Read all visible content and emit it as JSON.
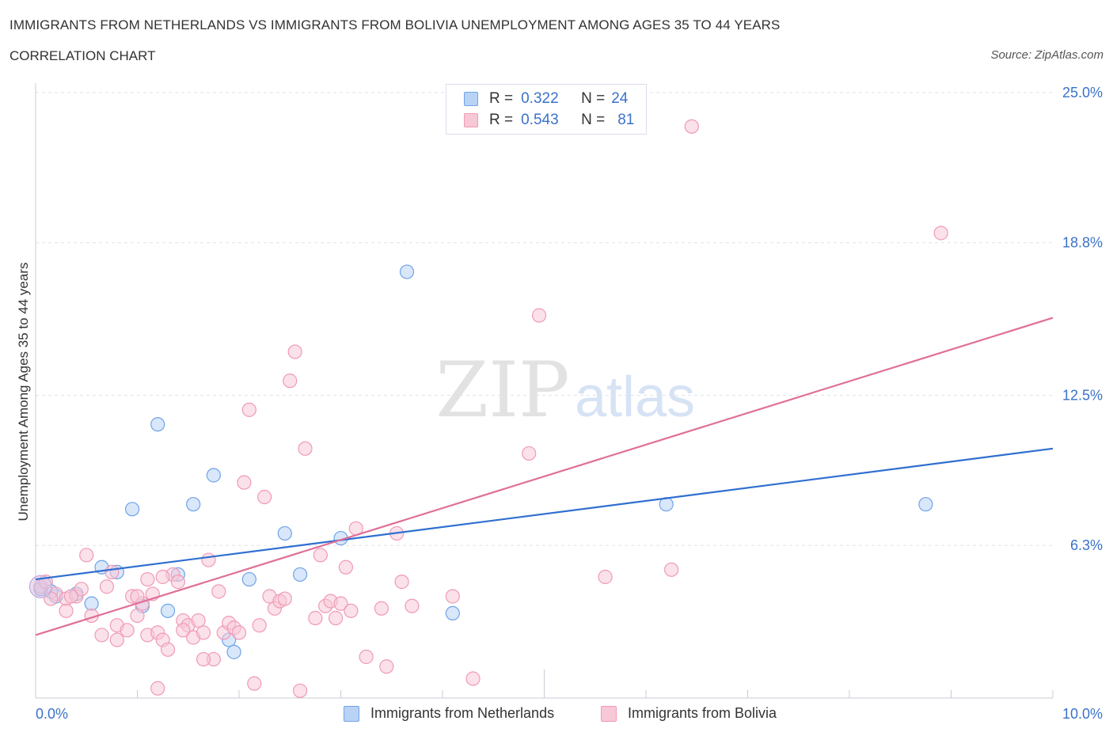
{
  "header": {
    "title": "IMMIGRANTS FROM NETHERLANDS VS IMMIGRANTS FROM BOLIVIA UNEMPLOYMENT AMONG AGES 35 TO 44 YEARS",
    "subtitle": "CORRELATION CHART",
    "source": "Source: ZipAtlas.com"
  },
  "watermark": {
    "zip": "ZIP",
    "atlas": "atlas"
  },
  "legend_top": {
    "rows": [
      {
        "r_label": "R =",
        "r_value": "0.322",
        "n_label": "N =",
        "n_value": "24"
      },
      {
        "r_label": "R =",
        "r_value": "0.543",
        "n_label": "N =",
        "n_value": "81"
      }
    ]
  },
  "chart_data": {
    "type": "scatter",
    "title": "IMMIGRANTS FROM NETHERLANDS VS IMMIGRANTS FROM BOLIVIA UNEMPLOYMENT AMONG AGES 35 TO 44 YEARS",
    "xlabel": "",
    "ylabel": "Unemployment Among Ages 35 to 44 years",
    "xlim": [
      0,
      10
    ],
    "ylim": [
      0,
      25
    ],
    "x_tick_labels": [
      {
        "value": 0,
        "label": "0.0%"
      },
      {
        "value": 10,
        "label": "10.0%"
      }
    ],
    "y_tick_labels": [
      {
        "value": 6.3,
        "label": "6.3%"
      },
      {
        "value": 12.5,
        "label": "12.5%"
      },
      {
        "value": 18.8,
        "label": "18.8%"
      },
      {
        "value": 25.0,
        "label": "25.0%"
      }
    ],
    "grid": true,
    "legend_position": "bottom",
    "series": [
      {
        "name": "Immigrants from Netherlands",
        "color": "#6fa3e8",
        "fill": "#b9d3f5",
        "line_color": "#2f6fd0",
        "trend": {
          "x0": 0,
          "y0": 4.9,
          "x1": 10,
          "y1": 10.3
        },
        "points": [
          [
            0.05,
            4.5
          ],
          [
            0.2,
            4.2
          ],
          [
            0.4,
            4.3
          ],
          [
            0.55,
            3.9
          ],
          [
            0.65,
            5.4
          ],
          [
            0.8,
            5.2
          ],
          [
            0.95,
            7.8
          ],
          [
            1.05,
            3.8
          ],
          [
            1.2,
            11.3
          ],
          [
            1.3,
            3.6
          ],
          [
            1.4,
            5.1
          ],
          [
            1.55,
            8.0
          ],
          [
            1.75,
            9.2
          ],
          [
            1.9,
            2.4
          ],
          [
            1.95,
            1.9
          ],
          [
            2.1,
            4.9
          ],
          [
            2.45,
            6.8
          ],
          [
            2.6,
            5.1
          ],
          [
            3.0,
            6.6
          ],
          [
            3.65,
            17.6
          ],
          [
            4.1,
            3.5
          ],
          [
            6.2,
            8.0
          ],
          [
            8.75,
            8.0
          ],
          [
            0.15,
            4.4
          ]
        ]
      },
      {
        "name": "Immigrants from Bolivia",
        "color": "#f09ab5",
        "fill": "#f8c8d7",
        "line_color": "#e06f98",
        "trend": {
          "x0": 0,
          "y0": 2.6,
          "x1": 10,
          "y1": 15.7
        },
        "points": [
          [
            0.05,
            4.6
          ],
          [
            0.1,
            4.8
          ],
          [
            0.2,
            4.3
          ],
          [
            0.3,
            4.1
          ],
          [
            0.3,
            3.6
          ],
          [
            0.4,
            4.2
          ],
          [
            0.45,
            4.5
          ],
          [
            0.5,
            5.9
          ],
          [
            0.55,
            3.4
          ],
          [
            0.65,
            2.6
          ],
          [
            0.7,
            4.6
          ],
          [
            0.75,
            5.2
          ],
          [
            0.8,
            3.0
          ],
          [
            0.8,
            2.4
          ],
          [
            0.9,
            2.8
          ],
          [
            0.95,
            4.2
          ],
          [
            1.0,
            3.4
          ],
          [
            1.05,
            3.9
          ],
          [
            1.1,
            2.6
          ],
          [
            1.15,
            4.3
          ],
          [
            1.2,
            2.7
          ],
          [
            1.25,
            2.4
          ],
          [
            1.3,
            2.0
          ],
          [
            1.35,
            5.1
          ],
          [
            1.4,
            4.8
          ],
          [
            1.45,
            3.2
          ],
          [
            1.5,
            3.0
          ],
          [
            1.55,
            2.5
          ],
          [
            1.6,
            3.2
          ],
          [
            1.65,
            2.7
          ],
          [
            1.7,
            5.7
          ],
          [
            1.75,
            1.6
          ],
          [
            1.8,
            4.4
          ],
          [
            1.85,
            2.7
          ],
          [
            1.9,
            3.1
          ],
          [
            1.95,
            2.9
          ],
          [
            2.05,
            8.9
          ],
          [
            2.1,
            11.9
          ],
          [
            2.15,
            0.6
          ],
          [
            2.2,
            3.0
          ],
          [
            2.25,
            8.3
          ],
          [
            2.3,
            4.2
          ],
          [
            2.35,
            3.7
          ],
          [
            2.4,
            4.0
          ],
          [
            2.45,
            4.1
          ],
          [
            2.5,
            13.1
          ],
          [
            2.55,
            14.3
          ],
          [
            2.6,
            0.3
          ],
          [
            2.65,
            10.3
          ],
          [
            2.75,
            3.3
          ],
          [
            2.8,
            5.9
          ],
          [
            2.85,
            3.8
          ],
          [
            2.9,
            4.0
          ],
          [
            2.95,
            3.3
          ],
          [
            3.0,
            3.9
          ],
          [
            3.05,
            5.4
          ],
          [
            3.1,
            3.6
          ],
          [
            3.15,
            7.0
          ],
          [
            3.25,
            1.7
          ],
          [
            3.4,
            3.7
          ],
          [
            3.45,
            1.3
          ],
          [
            3.55,
            6.8
          ],
          [
            3.6,
            4.8
          ],
          [
            3.7,
            3.8
          ],
          [
            4.1,
            4.2
          ],
          [
            4.3,
            0.8
          ],
          [
            4.85,
            10.1
          ],
          [
            4.95,
            15.8
          ],
          [
            5.6,
            5.0
          ],
          [
            6.25,
            5.3
          ],
          [
            6.45,
            23.6
          ],
          [
            8.9,
            19.2
          ],
          [
            1.2,
            0.4
          ],
          [
            0.15,
            4.1
          ],
          [
            0.35,
            4.2
          ],
          [
            1.0,
            4.2
          ],
          [
            1.25,
            5.0
          ],
          [
            1.45,
            2.8
          ],
          [
            2.0,
            2.7
          ],
          [
            1.65,
            1.6
          ],
          [
            1.1,
            4.9
          ]
        ]
      }
    ]
  },
  "legend_bottom": {
    "items": [
      {
        "label": "Immigrants from Netherlands"
      },
      {
        "label": "Immigrants from Bolivia"
      }
    ]
  }
}
